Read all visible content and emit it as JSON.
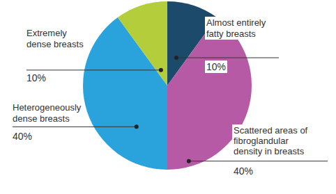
{
  "chart_data": {
    "type": "pie",
    "categories": [
      "Almost entirely fatty breasts",
      "Scattered areas of fibroglandular density in breasts",
      "Heterogeneously dense breasts",
      "Extremely dense breasts"
    ],
    "values": [
      10,
      40,
      40,
      10
    ],
    "value_labels": [
      "10%",
      "40%",
      "40%",
      "10%"
    ],
    "colors": [
      "#1b4a6b",
      "#b75aa5",
      "#2aa3dc",
      "#b4cd3b"
    ],
    "data_labels": true
  }
}
